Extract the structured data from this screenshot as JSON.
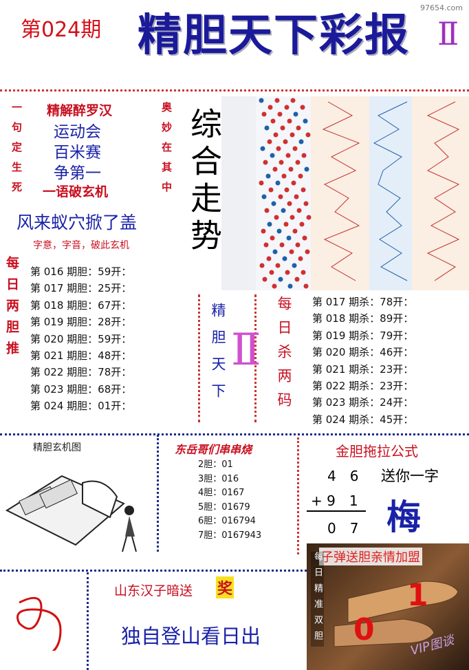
{
  "header": {
    "issue": "第024期",
    "title": "精胆天下彩报",
    "mark": "Ⅱ",
    "site": "97654.com"
  },
  "poem": {
    "heading": "精解醉罗汉",
    "lines": [
      "运动会",
      "百米赛",
      "争第一"
    ],
    "tagline": "一语破玄机",
    "left": "一句定生死",
    "right": "奥妙在其中",
    "riddle": "风来蚁穴掀了盖",
    "hint": "字意，字音，破此玄机"
  },
  "trend": {
    "label": "综合走势"
  },
  "dan": {
    "label": "每日两胆推",
    "rows": [
      "第 016 期胆：59开：",
      "第 017 期胆：25开：",
      "第 018 期胆：67开：",
      "第 019 期胆：28开：",
      "第 020 期胆：59开：",
      "第 021 期胆：48开：",
      "第 022 期胆：78开：",
      "第 023 期胆：68开：",
      "第 024 期胆：01开："
    ]
  },
  "center": {
    "label": "精胆天下",
    "mark": "Ⅱ"
  },
  "kill": {
    "label": "每日杀两码",
    "rows": [
      "第 017 期杀：78开：",
      "第 018 期杀：89开：",
      "第 019 期杀：79开：",
      "第 020 期杀：46开：",
      "第 021 期杀：23开：",
      "第 022 期杀：23开：",
      "第 023 期杀：24开：",
      "第 024 期杀：45开："
    ]
  },
  "picture": {
    "title": "精胆玄机图"
  },
  "series": {
    "title": "东岳哥们串串烧",
    "rows": [
      "2胆：01",
      "3胆：016",
      "4胆：0167",
      "5胆：01679",
      "6胆：016794",
      "7胆：0167943"
    ]
  },
  "formula": {
    "title": "金胆拖拉公式",
    "row1": "4　6",
    "row2": "+ 9　1",
    "row3": "0　7",
    "gift": "送你一字",
    "word": "梅"
  },
  "bottom": {
    "sender": "山东汉子暗送",
    "prize": "奖",
    "phrase": "独自登山看日出"
  },
  "bullet": {
    "title": "子弹送胆亲情加盟",
    "label": "每日精准双胆",
    "n1": "1",
    "n2": "0",
    "stamp": "VIP图谈"
  }
}
